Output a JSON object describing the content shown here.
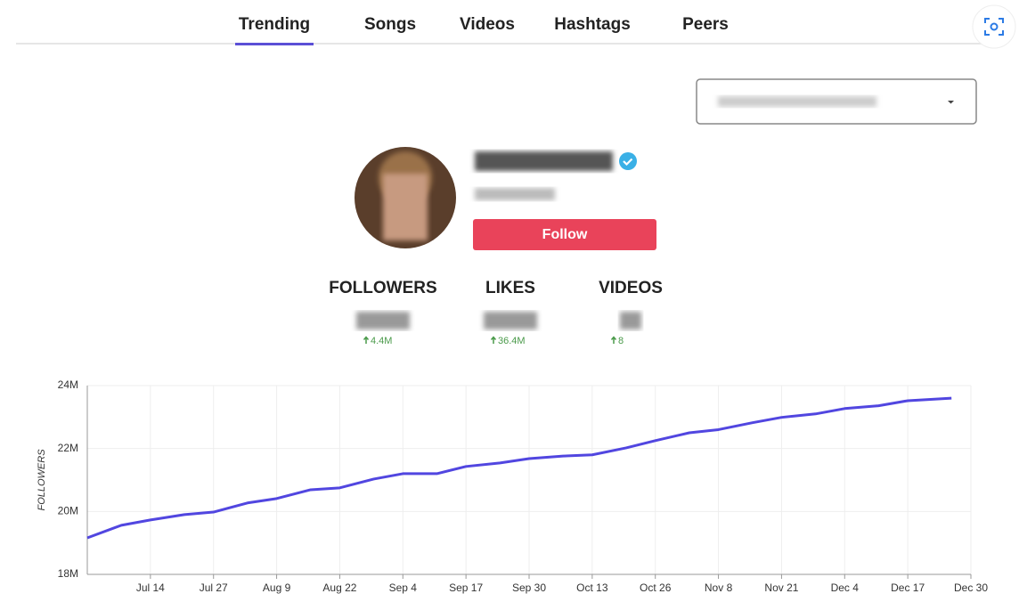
{
  "tabs": [
    "Trending",
    "Songs",
    "Videos",
    "Hashtags",
    "Peers"
  ],
  "active_tab": 0,
  "profile": {
    "follow_button": "Follow"
  },
  "stats": [
    {
      "label": "FOLLOWERS",
      "change": "4.4M"
    },
    {
      "label": "LIKES",
      "change": "36.4M"
    },
    {
      "label": "VIDEOS",
      "change": "8"
    }
  ],
  "chart_data": {
    "type": "line",
    "y_label": "FOLLOWERS",
    "color": "#5146e0",
    "grid": true,
    "x": [
      "Jul 1",
      "Jul 8",
      "Jul 14",
      "Jul 21",
      "Jul 27",
      "Aug 3",
      "Aug 9",
      "Aug 16",
      "Aug 22",
      "Aug 29",
      "Sep 4",
      "Sep 11",
      "Sep 17",
      "Sep 24",
      "Sep 30",
      "Oct 7",
      "Oct 13",
      "Oct 20",
      "Oct 26",
      "Nov 2",
      "Nov 8",
      "Nov 15",
      "Nov 21",
      "Nov 28",
      "Dec 4",
      "Dec 11",
      "Dec 17",
      "Dec 26"
    ],
    "values": [
      19160000,
      19560000,
      19730000,
      19900000,
      19980000,
      20270000,
      20410000,
      20690000,
      20750000,
      21030000,
      21200000,
      21200000,
      21430000,
      21540000,
      21680000,
      21760000,
      21800000,
      22020000,
      22250000,
      22500000,
      22600000,
      22820000,
      22990000,
      23100000,
      23270000,
      23360000,
      23520000,
      23600000
    ],
    "xlim": [
      "Jul 1",
      "Dec 30"
    ],
    "xticks": [
      "Jul 14",
      "Jul 27",
      "Aug 9",
      "Aug 22",
      "Sep 4",
      "Sep 17",
      "Sep 30",
      "Oct 13",
      "Oct 26",
      "Nov 8",
      "Nov 21",
      "Dec 4",
      "Dec 17",
      "Dec 30"
    ],
    "ylim": [
      18000000,
      24000000
    ],
    "yticks": [
      {
        "value": 18000000,
        "label": "18M"
      },
      {
        "value": 20000000,
        "label": "20M"
      },
      {
        "value": 22000000,
        "label": "22M"
      },
      {
        "value": 24000000,
        "label": "24M"
      }
    ]
  }
}
